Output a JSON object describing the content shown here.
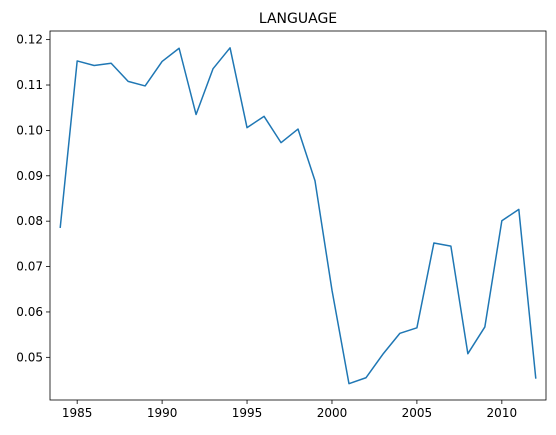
{
  "chart_data": {
    "type": "line",
    "title": "LANGUAGE",
    "xlabel": "",
    "ylabel": "",
    "xlim": [
      1983.4,
      2012.6
    ],
    "ylim": [
      0.0406,
      0.1219
    ],
    "x_ticks": [
      1985,
      1990,
      1995,
      2000,
      2005,
      2010
    ],
    "y_ticks": [
      0.05,
      0.06,
      0.07,
      0.08,
      0.09,
      0.1,
      0.11,
      0.12
    ],
    "y_tick_labels": [
      "0.05",
      "0.06",
      "0.07",
      "0.08",
      "0.09",
      "0.10",
      "0.11",
      "0.12"
    ],
    "grid": false,
    "legend": "none",
    "series": [
      {
        "color": "#1f77b4",
        "x": [
          1984,
          1985,
          1986,
          1987,
          1988,
          1989,
          1990,
          1991,
          1992,
          1993,
          1994,
          1995,
          1996,
          1997,
          1998,
          1999,
          2000,
          2001,
          2002,
          2003,
          2004,
          2005,
          2006,
          2007,
          2008,
          2009,
          2010,
          2011,
          2012
        ],
        "values": [
          0.0785,
          0.1153,
          0.1143,
          0.1148,
          0.1108,
          0.1098,
          0.1152,
          0.1181,
          0.1035,
          0.1136,
          0.1182,
          0.1006,
          0.1031,
          0.0973,
          0.1003,
          0.0889,
          0.0648,
          0.0442,
          0.0455,
          0.0507,
          0.0553,
          0.0565,
          0.0752,
          0.0745,
          0.0508,
          0.0567,
          0.0801,
          0.0826,
          0.0453
        ]
      }
    ]
  }
}
